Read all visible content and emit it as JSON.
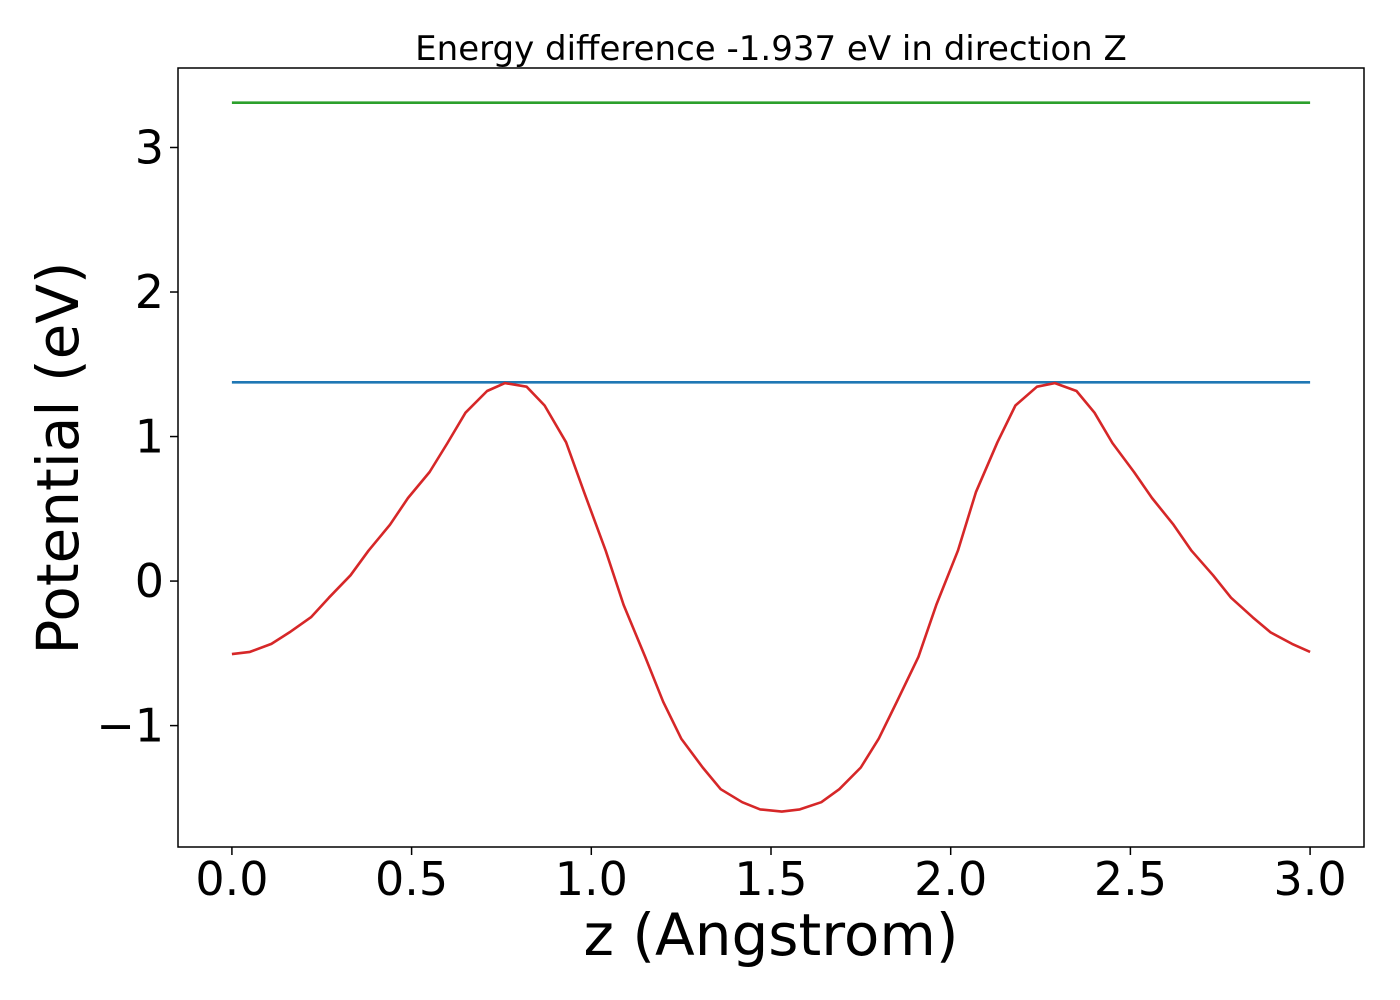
{
  "chart_data": {
    "type": "line",
    "title": "Energy difference -1.937 eV in direction Z",
    "xlabel": "z (Angstrom)",
    "ylabel": "Potential (eV)",
    "xlim": [
      -0.15,
      3.15
    ],
    "ylim": [
      -1.84,
      3.55
    ],
    "grid": false,
    "x_ticks": [
      0.0,
      0.5,
      1.0,
      1.5,
      2.0,
      2.5,
      3.0
    ],
    "x_tick_labels": [
      "0.0",
      "0.5",
      "1.0",
      "1.5",
      "2.0",
      "2.5",
      "3.0"
    ],
    "y_ticks": [
      -1,
      0,
      1,
      2,
      3
    ],
    "y_tick_labels": [
      "−1",
      "0",
      "1",
      "2",
      "3"
    ],
    "series": [
      {
        "color": "#2ca02c",
        "x": [
          0.0,
          3.0
        ],
        "y": [
          3.31,
          3.31
        ]
      },
      {
        "color": "#1f77b4",
        "x": [
          0.0,
          3.0
        ],
        "y": [
          1.375,
          1.375
        ]
      },
      {
        "color": "#d62728",
        "x": [
          0.0,
          0.05,
          0.11,
          0.16,
          0.22,
          0.27,
          0.33,
          0.38,
          0.44,
          0.49,
          0.55,
          0.6,
          0.65,
          0.71,
          0.76,
          0.82,
          0.87,
          0.93,
          0.98,
          1.04,
          1.09,
          1.15,
          1.2,
          1.25,
          1.31,
          1.36,
          1.42,
          1.47,
          1.53,
          1.58,
          1.64,
          1.69,
          1.75,
          1.8,
          1.85,
          1.91,
          1.96,
          2.02,
          2.07,
          2.13,
          2.18,
          2.24,
          2.29,
          2.35,
          2.4,
          2.45,
          2.51,
          2.56,
          2.62,
          2.67,
          2.73,
          2.78,
          2.84,
          2.89,
          2.95,
          3.0
        ],
        "y": [
          -0.505,
          -0.49,
          -0.435,
          -0.355,
          -0.25,
          -0.115,
          0.04,
          0.21,
          0.39,
          0.575,
          0.755,
          0.955,
          1.165,
          1.315,
          1.37,
          1.345,
          1.215,
          0.96,
          0.615,
          0.21,
          -0.165,
          -0.525,
          -0.835,
          -1.09,
          -1.29,
          -1.44,
          -1.53,
          -1.58,
          -1.595,
          -1.58,
          -1.53,
          -1.44,
          -1.29,
          -1.09,
          -0.835,
          -0.525,
          -0.165,
          0.21,
          0.615,
          0.96,
          1.215,
          1.345,
          1.37,
          1.315,
          1.165,
          0.955,
          0.755,
          0.575,
          0.39,
          0.21,
          0.04,
          -0.115,
          -0.25,
          -0.355,
          -0.435,
          -0.49
        ]
      }
    ]
  }
}
